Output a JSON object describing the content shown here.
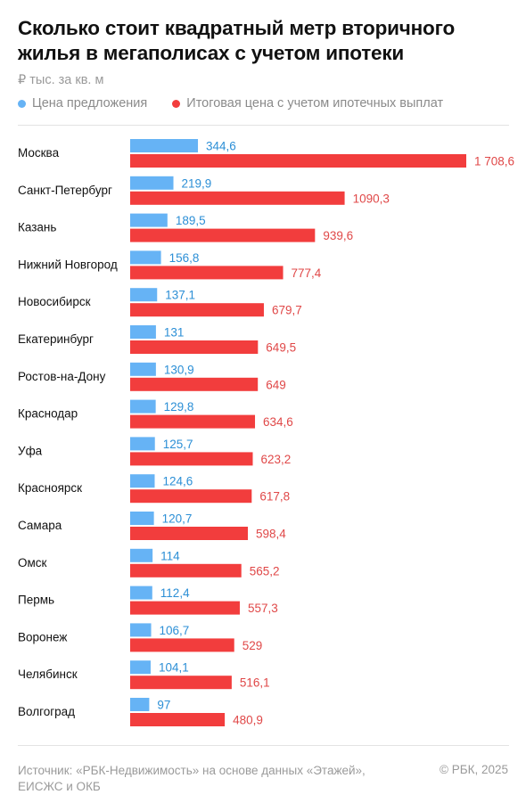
{
  "title": "Сколько стоит квадратный метр вторичного жилья в мегаполисах с учетом ипотеки",
  "unit": "₽ тыс. за кв. м",
  "colors": {
    "offer": "#66b3f5",
    "total": "#f23d3d",
    "offer_text": "#2c8fd6",
    "total_text": "#e04848",
    "city_text": "#111111"
  },
  "legend": [
    {
      "label": "Цена предложения",
      "color": "#66b3f5"
    },
    {
      "label": "Итоговая цена с учетом ипотечных выплат",
      "color": "#f23d3d"
    }
  ],
  "chart_data": {
    "type": "bar",
    "orientation": "horizontal",
    "categories": [
      "Москва",
      "Санкт-Петербург",
      "Казань",
      "Нижний Новгород",
      "Новосибирск",
      "Екатеринбург",
      "Ростов-на-Дону",
      "Краснодар",
      "Уфа",
      "Красноярск",
      "Самара",
      "Омск",
      "Пермь",
      "Воронеж",
      "Челябинск",
      "Волгоград"
    ],
    "series": [
      {
        "name": "Цена предложения",
        "values": [
          344.6,
          219.9,
          189.5,
          156.8,
          137.1,
          131,
          130.9,
          129.8,
          125.7,
          124.6,
          120.7,
          114,
          112.4,
          106.7,
          104.1,
          97
        ],
        "labels": [
          "344,6",
          "219,9",
          "189,5",
          "156,8",
          "137,1",
          "131",
          "130,9",
          "129,8",
          "125,7",
          "124,6",
          "120,7",
          "114",
          "112,4",
          "106,7",
          "104,1",
          "97"
        ]
      },
      {
        "name": "Итоговая цена с учетом ипотечных выплат",
        "values": [
          1708.6,
          1090.3,
          939.6,
          777.4,
          679.7,
          649.5,
          649,
          634.6,
          623.2,
          617.8,
          598.4,
          565.2,
          557.3,
          529,
          516.1,
          480.9
        ],
        "labels": [
          "1 708,6",
          "1090,3",
          "939,6",
          "777,4",
          "679,7",
          "649,5",
          "649",
          "634,6",
          "623,2",
          "617,8",
          "598,4",
          "565,2",
          "557,3",
          "529",
          "516,1",
          "480,9"
        ]
      }
    ],
    "xlim": [
      0,
      1708.6
    ],
    "grid": false,
    "legend_position": "top-left"
  },
  "footer": {
    "source": "Источник: «РБК-Недвижимость» на основе данных «Этажей», ЕИСЖС и ОКБ",
    "copyright": "© РБК, 2025"
  }
}
